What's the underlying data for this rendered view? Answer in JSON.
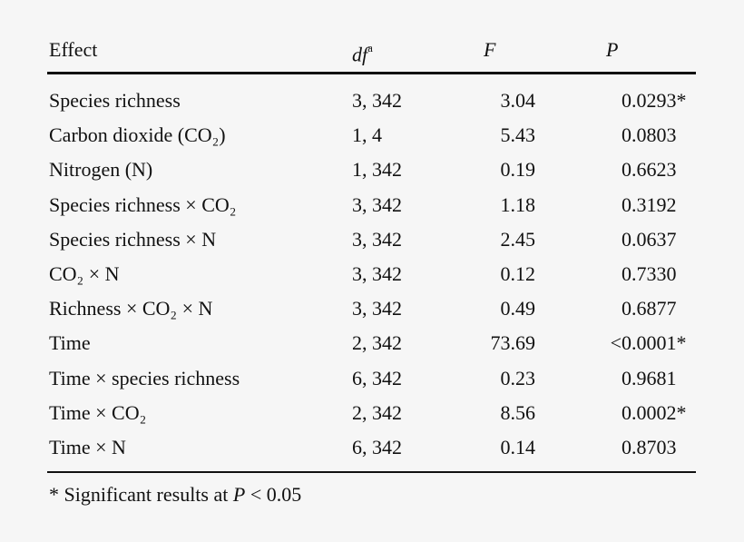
{
  "table": {
    "columns": [
      "Effect",
      "df",
      "F",
      "P"
    ],
    "df_note": "a",
    "rows": [
      [
        "Species richness",
        "3, 342",
        "3.04",
        "0.0293*"
      ],
      [
        "Carbon dioxide (CO₂)",
        "1, 4",
        "5.43",
        "0.0803"
      ],
      [
        "Nitrogen (N)",
        "1, 342",
        "0.19",
        "0.6623"
      ],
      [
        "Species richness × CO₂",
        "3, 342",
        "1.18",
        "0.3192"
      ],
      [
        "Species richness × N",
        "3, 342",
        "2.45",
        "0.0637"
      ],
      [
        "CO₂ × N",
        "3, 342",
        "0.12",
        "0.7330"
      ],
      [
        "Richness × CO₂ × N",
        "3, 342",
        "0.49",
        "0.6877"
      ],
      [
        "Time",
        "2, 342",
        "73.69",
        "<0.0001*"
      ],
      [
        "Time × species richness",
        "6, 342",
        "0.23",
        "0.9681"
      ],
      [
        "Time × CO₂",
        "2, 342",
        "8.56",
        "0.0002*"
      ],
      [
        "Time × N",
        "6, 342",
        "0.14",
        "0.8703"
      ]
    ],
    "footnote": {
      "prefix": "* Significant results at ",
      "symbol": "P",
      "suffix": " < 0.05"
    }
  }
}
